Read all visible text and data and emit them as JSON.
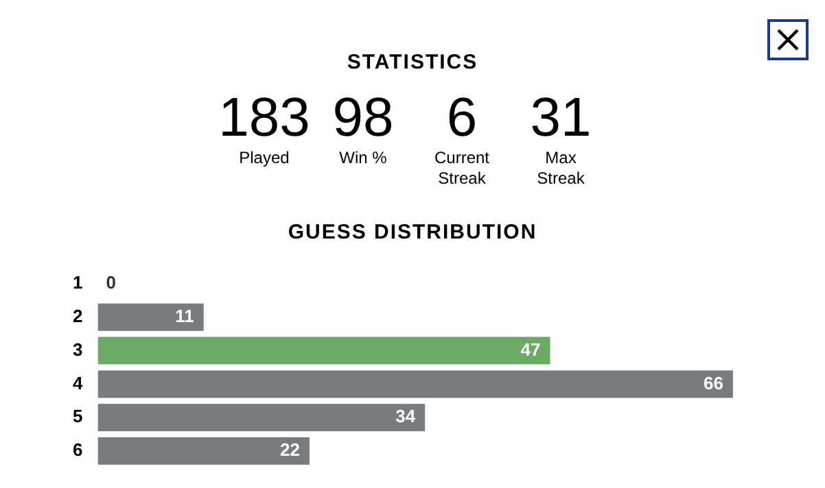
{
  "chart_data": [
    {
      "type": "other",
      "title": "STATISTICS",
      "annotations": [
        "183",
        "Played",
        "98",
        "Win %",
        "6",
        "Current Streak",
        "31",
        "Max Streak"
      ]
    },
    {
      "type": "bar",
      "title": "GUESS DISTRIBUTION",
      "orientation": "horizontal",
      "categories": [
        "1",
        "2",
        "3",
        "4",
        "5",
        "6"
      ],
      "values": [
        0,
        11,
        47,
        66,
        34,
        22
      ],
      "colors": [
        "#787c7e",
        "#787c7e",
        "#6aaa64",
        "#787c7e",
        "#787c7e",
        "#787c7e"
      ],
      "data_labels": true
    }
  ]
}
